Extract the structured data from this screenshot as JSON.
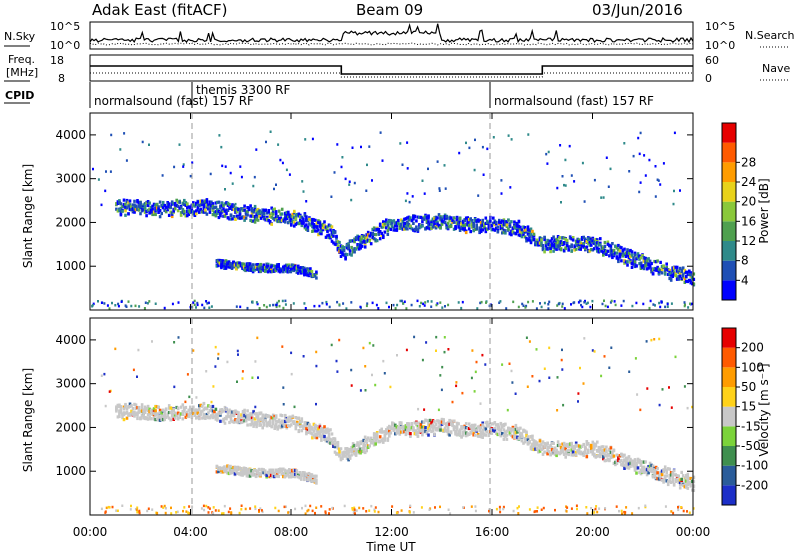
{
  "header": {
    "radar": "Adak East (fitACF)",
    "beam": "Beam 09",
    "date": "03/Jun/2016"
  },
  "noise_panel": {
    "left_label": "N.Sky",
    "left_ticks": [
      "10^5",
      "10^0"
    ],
    "right_ticks": [
      "10^5",
      "10^0"
    ],
    "right_label": "N.Search"
  },
  "freq_panel": {
    "left_label_1": "Freq.",
    "left_label_2": "[MHz]",
    "left_ticks": [
      "18",
      "8"
    ],
    "right_ticks": [
      "60",
      "0"
    ],
    "right_label": "Nave",
    "cpid_label": "CPID",
    "cpid_segments": [
      {
        "label": "normalsound (fast) 157 RF",
        "start": "00:00",
        "end": "03:30"
      },
      {
        "label": "themis 3300 RF",
        "start": "03:30",
        "end": "16:00"
      },
      {
        "label": "normalsound (fast) 157 RF",
        "start": "16:00",
        "end": "24:00"
      }
    ]
  },
  "chart_data": [
    {
      "type": "heatmap",
      "name": "power",
      "ylabel": "Slant Range [km]",
      "yticks": [
        1000,
        2000,
        3000,
        4000
      ],
      "ylim": [
        0,
        4500
      ],
      "colorbar": {
        "label": "Power [dB]",
        "ticks": [
          4,
          8,
          12,
          16,
          20,
          24,
          28
        ],
        "colors": [
          "#0000ff",
          "#1f4fb5",
          "#2f8a8a",
          "#4fa04f",
          "#8ac83a",
          "#e8d21a",
          "#ff9c00",
          "#ff5a00",
          "#e60000"
        ]
      },
      "echo_bands": [
        {
          "t": [
            1.0,
            3.0,
            4.5,
            6.0,
            8.0,
            9.5,
            10.0,
            12.0,
            14.0,
            15.5,
            16.0,
            17.0,
            18.0,
            20.0,
            22.0,
            24.0
          ],
          "range": [
            2350,
            2300,
            2350,
            2200,
            2100,
            1800,
            1300,
            1950,
            2000,
            1900,
            1950,
            1850,
            1500,
            1500,
            1050,
            700
          ]
        },
        {
          "t": [
            5.0,
            6.5,
            8.0,
            9.0
          ],
          "range": [
            1050,
            950,
            950,
            800
          ]
        }
      ]
    },
    {
      "type": "heatmap",
      "name": "velocity",
      "ylabel": "Slant Range [km]",
      "yticks": [
        1000,
        2000,
        3000,
        4000
      ],
      "ylim": [
        0,
        4500
      ],
      "colorbar": {
        "label": "Velocity [m s⁻¹]",
        "ticks": [
          200,
          100,
          50,
          15,
          -15,
          -50,
          -100,
          -200
        ],
        "colors": [
          "#1c2fc8",
          "#2a5c9a",
          "#3f8f4f",
          "#7bd33a",
          "#c8c8c8",
          "#ffd21a",
          "#ff9c00",
          "#ff5a00",
          "#e60000"
        ]
      },
      "xlabel": "Time UT",
      "xticks": [
        "00:00",
        "04:00",
        "08:00",
        "12:00",
        "16:00",
        "20:00",
        "00:00"
      ]
    }
  ]
}
